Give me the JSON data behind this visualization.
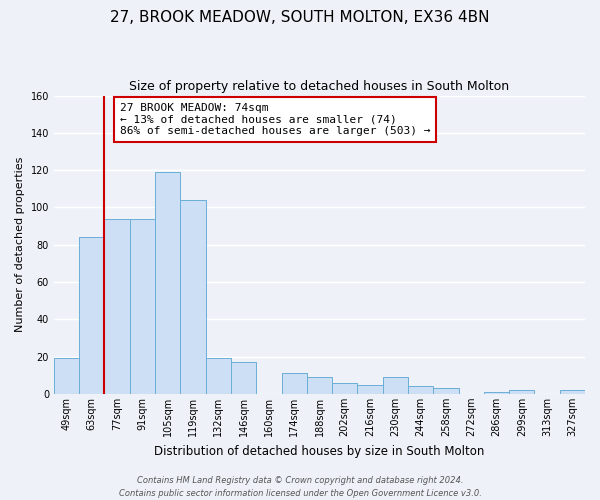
{
  "title": "27, BROOK MEADOW, SOUTH MOLTON, EX36 4BN",
  "subtitle": "Size of property relative to detached houses in South Molton",
  "xlabel": "Distribution of detached houses by size in South Molton",
  "ylabel": "Number of detached properties",
  "bin_labels": [
    "49sqm",
    "63sqm",
    "77sqm",
    "91sqm",
    "105sqm",
    "119sqm",
    "132sqm",
    "146sqm",
    "160sqm",
    "174sqm",
    "188sqm",
    "202sqm",
    "216sqm",
    "230sqm",
    "244sqm",
    "258sqm",
    "272sqm",
    "286sqm",
    "299sqm",
    "313sqm",
    "327sqm"
  ],
  "bar_values": [
    19,
    84,
    94,
    94,
    119,
    104,
    19,
    17,
    0,
    11,
    9,
    6,
    5,
    9,
    4,
    3,
    0,
    1,
    2,
    0,
    2
  ],
  "bar_color": "#ccdff5",
  "bar_edge_color": "#6aaed6",
  "bar_edge_width": 0.7,
  "ylim": [
    0,
    160
  ],
  "yticks": [
    0,
    20,
    40,
    60,
    80,
    100,
    120,
    140,
    160
  ],
  "vline_x_index": 2,
  "vline_color": "#cc0000",
  "annotation_text": "27 BROOK MEADOW: 74sqm\n← 13% of detached houses are smaller (74)\n86% of semi-detached houses are larger (503) →",
  "annotation_box_color": "#ffffff",
  "annotation_box_edge_color": "#cc0000",
  "footer_text": "Contains HM Land Registry data © Crown copyright and database right 2024.\nContains public sector information licensed under the Open Government Licence v3.0.",
  "background_color": "#eef2f8",
  "grid_color": "#ffffff",
  "title_fontsize": 11,
  "subtitle_fontsize": 9,
  "xlabel_fontsize": 8.5,
  "ylabel_fontsize": 8,
  "tick_fontsize": 7,
  "annotation_fontsize": 8,
  "footer_fontsize": 6
}
